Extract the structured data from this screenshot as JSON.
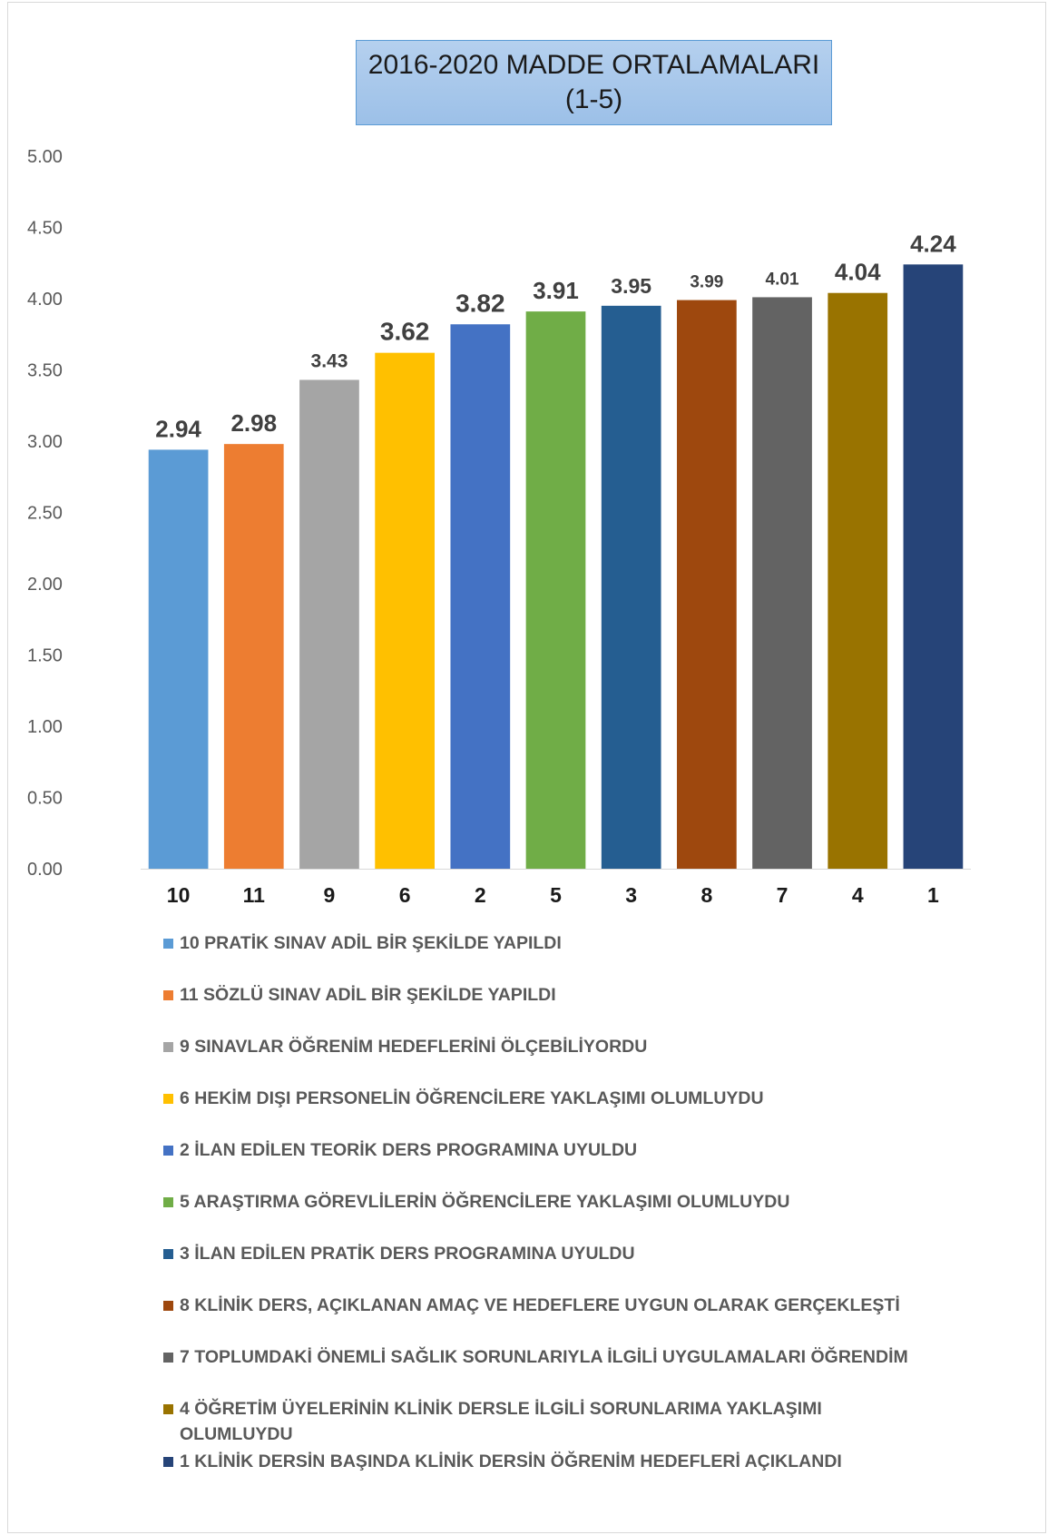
{
  "chart_data": {
    "type": "bar",
    "title_lines": [
      "2016-2020 MADDE ORTALAMALARI",
      "(1-5)"
    ],
    "xlabel": "",
    "ylabel": "",
    "ylim": [
      0,
      5
    ],
    "y_ticks": [
      "0.00",
      "0.50",
      "1.00",
      "1.50",
      "2.00",
      "2.50",
      "3.00",
      "3.50",
      "4.00",
      "4.50",
      "5.00"
    ],
    "grid": false,
    "legend_position": "bottom",
    "categories": [
      "10",
      "11",
      "9",
      "6",
      "2",
      "5",
      "3",
      "8",
      "7",
      "4",
      "1"
    ],
    "values": [
      2.94,
      2.98,
      3.43,
      3.62,
      3.82,
      3.91,
      3.95,
      3.99,
      4.01,
      4.04,
      4.24
    ],
    "value_labels": [
      "2.94",
      "2.98",
      "3.43",
      "3.62",
      "3.82",
      "3.91",
      "3.95",
      "3.99",
      "4.01",
      "4.04",
      "4.24"
    ],
    "colors": [
      "#5b9bd5",
      "#ed7d31",
      "#a5a5a5",
      "#ffc000",
      "#4472c4",
      "#70ad47",
      "#255e91",
      "#9e480e",
      "#636363",
      "#997300",
      "#264478"
    ],
    "legend": [
      "10 PRATİK SINAV ADİL BİR ŞEKİLDE YAPILDI",
      "11 SÖZLÜ SINAV ADİL BİR ŞEKİLDE YAPILDI",
      "9 SINAVLAR ÖĞRENİM HEDEFLERİNİ ÖLÇEBİLİYORDU",
      "6 HEKİM DIŞI PERSONELİN ÖĞRENCİLERE YAKLAŞIMI OLUMLUYDU",
      "2 İLAN EDİLEN TEORİK DERS PROGRAMINA UYULDU",
      "5 ARAŞTIRMA GÖREVLİLERİN ÖĞRENCİLERE YAKLAŞIMI OLUMLUYDU",
      "3 İLAN EDİLEN PRATİK DERS PROGRAMINA UYULDU",
      "8 KLİNİK DERS, AÇIKLANAN AMAÇ VE HEDEFLERE UYGUN OLARAK GERÇEKLEŞTİ",
      "7 TOPLUMDAKİ ÖNEMLİ SAĞLIK SORUNLARIYLA İLGİLİ UYGULAMALARI ÖĞRENDİM",
      "4 ÖĞRETİM ÜYELERİNİN KLİNİK DERSLE İLGİLİ SORUNLARIMA YAKLAŞIMI OLUMLUYDU",
      "1 KLİNİK DERSİN BAŞINDA KLİNİK DERSİN ÖĞRENİM HEDEFLERİ AÇIKLANDI"
    ]
  }
}
